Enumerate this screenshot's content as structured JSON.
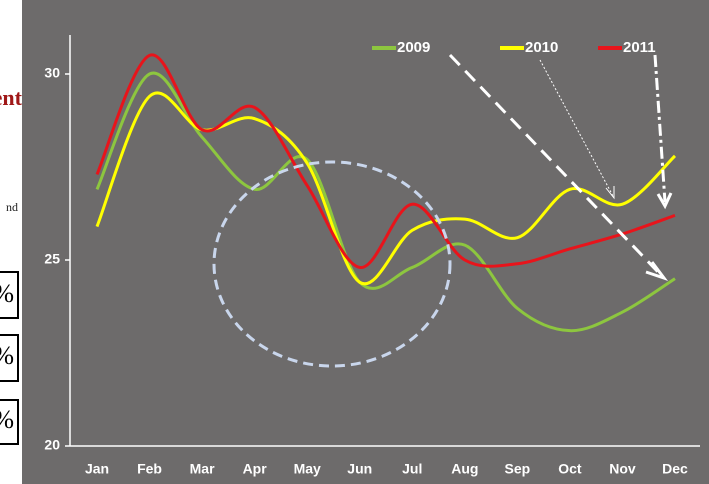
{
  "side_text": {
    "heading": "ent",
    "note": "nd",
    "cells": [
      "%",
      "%",
      "%"
    ]
  },
  "chart_data": {
    "type": "line",
    "categories": [
      "Jan",
      "Feb",
      "Mar",
      "Apr",
      "May",
      "Jun",
      "Jul",
      "Aug",
      "Sep",
      "Oct",
      "Nov",
      "Dec"
    ],
    "series": [
      {
        "name": "2009",
        "color": "#8dc63f",
        "values": [
          26.9,
          30.0,
          28.3,
          26.9,
          27.7,
          24.4,
          24.8,
          25.4,
          23.7,
          23.1,
          23.6,
          24.5
        ]
      },
      {
        "name": "2010",
        "color": "#ffff00",
        "values": [
          25.9,
          29.4,
          28.5,
          28.8,
          27.6,
          24.4,
          25.8,
          26.1,
          25.6,
          26.9,
          26.5,
          27.8
        ]
      },
      {
        "name": "2011",
        "color": "#e8141b",
        "values": [
          27.3,
          30.5,
          28.5,
          29.1,
          27.0,
          24.8,
          26.5,
          25.0,
          24.9,
          25.3,
          25.7,
          26.2
        ]
      }
    ],
    "ylim": [
      20,
      30
    ],
    "yticks": [
      20,
      25,
      30
    ],
    "grid": false,
    "legend": "top"
  }
}
